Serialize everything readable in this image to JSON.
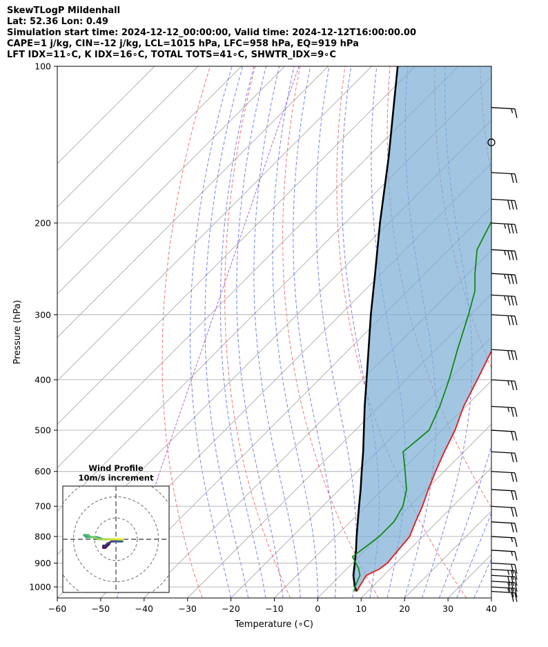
{
  "header": {
    "line1": "SkewTLogP Mildenhall",
    "line2": "Lat: 52.36   Lon: 0.49",
    "line3": "Simulation start time: 2024-12-12_00:00:00, Valid time: 2024-12-12T16:00:00.00",
    "line4": "CAPE=1 j/kg, CIN=-12 j/kg, LCL=1015 hPa, LFC=958 hPa, EQ=919 hPa",
    "line5": "LFT IDX=11∘C, K IDX=16∘C, TOTAL TOTS=41∘C, SHWTR_IDX=9∘C"
  },
  "chart_data": {
    "type": "line",
    "xlabel": "Temperature (∘C)",
    "ylabel": "Pressure (hPa)",
    "xlim": [
      -60,
      40
    ],
    "ylim": [
      1050,
      100
    ],
    "y_scale": "log",
    "x_ticks": [
      -60,
      -50,
      -40,
      -30,
      -20,
      -10,
      0,
      10,
      20,
      30,
      40
    ],
    "y_ticks": [
      100,
      200,
      300,
      400,
      500,
      600,
      700,
      800,
      900,
      1000
    ],
    "grid": true,
    "temperature": [
      [
        1020,
        7.5
      ],
      [
        1000,
        7
      ],
      [
        950,
        6
      ],
      [
        925,
        7.5
      ],
      [
        900,
        8
      ],
      [
        850,
        7.5
      ],
      [
        800,
        7
      ],
      [
        750,
        5
      ],
      [
        700,
        3
      ],
      [
        650,
        0.5
      ],
      [
        600,
        -2
      ],
      [
        550,
        -4.5
      ],
      [
        500,
        -7
      ],
      [
        450,
        -10.5
      ],
      [
        400,
        -13.5
      ],
      [
        350,
        -17
      ],
      [
        330,
        -19
      ],
      [
        300,
        -20.5
      ],
      [
        275,
        -22.5
      ],
      [
        250,
        -26
      ],
      [
        225,
        -30.5
      ],
      [
        200,
        -36
      ],
      [
        180,
        -38.5
      ],
      [
        170,
        -38.5
      ],
      [
        160,
        -40
      ],
      [
        150,
        -43
      ],
      [
        140,
        -46.5
      ],
      [
        130,
        -50
      ],
      [
        120,
        -53.5
      ],
      [
        110,
        -56
      ],
      [
        100,
        -59
      ]
    ],
    "dewpoint": [
      [
        1020,
        7
      ],
      [
        1000,
        6
      ],
      [
        950,
        4.5
      ],
      [
        920,
        2.5
      ],
      [
        875,
        -1.5
      ],
      [
        850,
        -1
      ],
      [
        800,
        0
      ],
      [
        750,
        0
      ],
      [
        700,
        -1.5
      ],
      [
        650,
        -4.5
      ],
      [
        600,
        -9
      ],
      [
        550,
        -14
      ],
      [
        500,
        -13
      ],
      [
        450,
        -16
      ],
      [
        400,
        -20
      ],
      [
        350,
        -25
      ],
      [
        300,
        -30.5
      ],
      [
        270,
        -34.5
      ],
      [
        250,
        -38.5
      ],
      [
        225,
        -43.5
      ],
      [
        200,
        -46.5
      ],
      [
        180,
        -48
      ],
      [
        160,
        -48.5
      ],
      [
        150,
        -49
      ],
      [
        140,
        -52
      ],
      [
        130,
        -55
      ],
      [
        120,
        -58
      ],
      [
        110,
        -62
      ],
      [
        100,
        -66
      ]
    ],
    "parcel": [
      [
        1020,
        7.5
      ],
      [
        1000,
        6
      ],
      [
        950,
        3
      ],
      [
        900,
        0.5
      ],
      [
        850,
        -2.2
      ],
      [
        800,
        -5.2
      ],
      [
        750,
        -8.3
      ],
      [
        700,
        -11.6
      ],
      [
        650,
        -15.1
      ],
      [
        600,
        -19
      ],
      [
        550,
        -23.2
      ],
      [
        500,
        -28
      ],
      [
        450,
        -33.3
      ],
      [
        400,
        -39
      ],
      [
        350,
        -45.5
      ],
      [
        300,
        -53
      ],
      [
        250,
        -61.5
      ],
      [
        200,
        -72
      ],
      [
        150,
        -85
      ],
      [
        100,
        -104
      ]
    ],
    "wind_barbs": [
      [
        1020,
        20
      ],
      [
        1000,
        25
      ],
      [
        975,
        30
      ],
      [
        950,
        30
      ],
      [
        925,
        25
      ],
      [
        900,
        20
      ],
      [
        850,
        15
      ],
      [
        800,
        15
      ],
      [
        750,
        20
      ],
      [
        700,
        20
      ],
      [
        650,
        20
      ],
      [
        600,
        20
      ],
      [
        550,
        20
      ],
      [
        500,
        20
      ],
      [
        450,
        25
      ],
      [
        400,
        25
      ],
      [
        350,
        30
      ],
      [
        300,
        30
      ],
      [
        275,
        35
      ],
      [
        250,
        35
      ],
      [
        225,
        35
      ],
      [
        200,
        35
      ],
      [
        180,
        30
      ],
      [
        160,
        20
      ],
      [
        140,
        0
      ],
      [
        120,
        15
      ]
    ],
    "hodograph": {
      "title": "Wind Profile",
      "subtitle": "10m/s increment",
      "rings": [
        10,
        20,
        30
      ],
      "range": [
        -25,
        25
      ],
      "u": [
        -3,
        -4,
        -5,
        -6,
        -6,
        -5,
        -4,
        -2,
        0,
        1,
        2,
        3,
        2,
        1,
        -1,
        -3,
        -6,
        -9,
        -12,
        -14,
        -15,
        -14,
        -13,
        -12,
        -11,
        -10,
        -8,
        -6,
        -4,
        -2,
        0,
        2,
        3
      ],
      "v": [
        -2,
        -3,
        -4,
        -4,
        -3,
        -3,
        -2,
        -1,
        -1,
        -1,
        -1,
        -1,
        0,
        0,
        0,
        0,
        0,
        1,
        1,
        1,
        2,
        2,
        2,
        1,
        1,
        1,
        0,
        0,
        0,
        0,
        0,
        0,
        0
      ]
    }
  }
}
